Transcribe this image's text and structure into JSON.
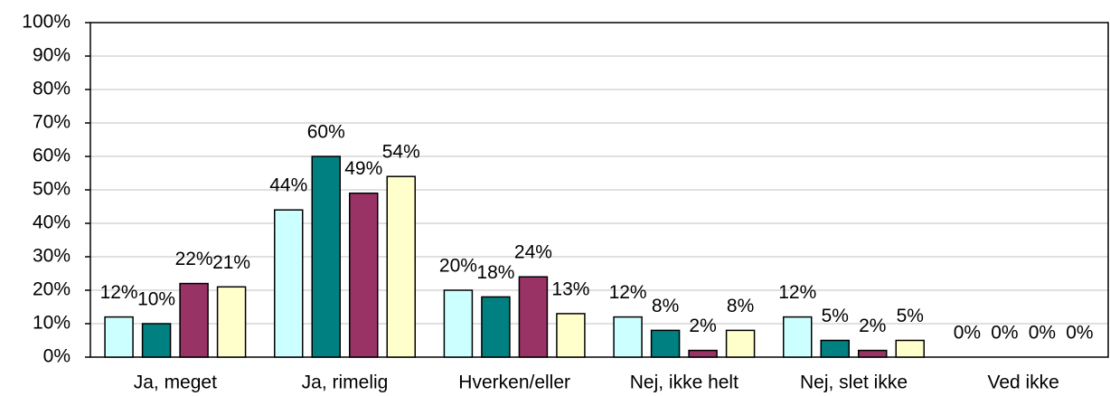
{
  "chart_data": {
    "type": "bar",
    "categories": [
      "Ja, meget",
      "Ja, rimelig",
      "Hverken/eller",
      "Nej, ikke helt",
      "Nej, slet ikke",
      "Ved ikke"
    ],
    "series": [
      {
        "color": "#ccffff",
        "values": [
          12,
          44,
          20,
          12,
          12,
          0
        ],
        "value_labels": [
          "12%",
          "44%",
          "20%",
          "12%",
          "12%",
          "0%"
        ]
      },
      {
        "color": "#008080",
        "values": [
          10,
          60,
          18,
          8,
          5,
          0
        ],
        "value_labels": [
          "10%",
          "60%",
          "18%",
          "8%",
          "5%",
          "0%"
        ]
      },
      {
        "color": "#993366",
        "values": [
          22,
          49,
          24,
          2,
          2,
          0
        ],
        "value_labels": [
          "22%",
          "49%",
          "24%",
          "2%",
          "2%",
          "0%"
        ]
      },
      {
        "color": "#ffffcc",
        "values": [
          21,
          54,
          13,
          8,
          5,
          0
        ],
        "value_labels": [
          "21%",
          "54%",
          "13%",
          "8%",
          "5%",
          "0%"
        ]
      }
    ],
    "ylim": [
      0,
      100
    ],
    "yticks": [
      {
        "value": 0,
        "label": "0%"
      },
      {
        "value": 10,
        "label": "10%"
      },
      {
        "value": 20,
        "label": "20%"
      },
      {
        "value": 30,
        "label": "30%"
      },
      {
        "value": 40,
        "label": "40%"
      },
      {
        "value": 50,
        "label": "50%"
      },
      {
        "value": 60,
        "label": "60%"
      },
      {
        "value": 70,
        "label": "70%"
      },
      {
        "value": 80,
        "label": "80%"
      },
      {
        "value": 90,
        "label": "90%"
      },
      {
        "value": 100,
        "label": "100%"
      }
    ],
    "grid": true
  }
}
